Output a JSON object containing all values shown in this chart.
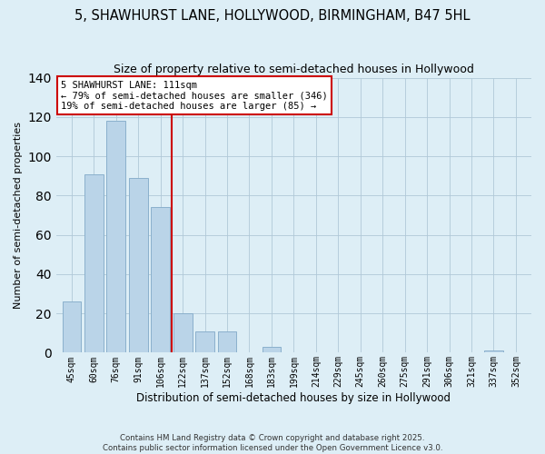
{
  "title": "5, SHAWHURST LANE, HOLLYWOOD, BIRMINGHAM, B47 5HL",
  "subtitle": "Size of property relative to semi-detached houses in Hollywood",
  "xlabel": "Distribution of semi-detached houses by size in Hollywood",
  "ylabel": "Number of semi-detached properties",
  "bar_labels": [
    "45sqm",
    "60sqm",
    "76sqm",
    "91sqm",
    "106sqm",
    "122sqm",
    "137sqm",
    "152sqm",
    "168sqm",
    "183sqm",
    "199sqm",
    "214sqm",
    "229sqm",
    "245sqm",
    "260sqm",
    "275sqm",
    "291sqm",
    "306sqm",
    "321sqm",
    "337sqm",
    "352sqm"
  ],
  "bar_values": [
    26,
    91,
    118,
    89,
    74,
    20,
    11,
    11,
    0,
    3,
    0,
    0,
    0,
    0,
    0,
    0,
    0,
    0,
    0,
    1,
    0
  ],
  "bar_color": "#bad4e8",
  "bar_edge_color": "#8ab0cc",
  "vline_x": 4.5,
  "vline_color": "#cc0000",
  "annotation_title": "5 SHAWHURST LANE: 111sqm",
  "annotation_line1": "← 79% of semi-detached houses are smaller (346)",
  "annotation_line2": "19% of semi-detached houses are larger (85) →",
  "annotation_box_color": "#ffffff",
  "annotation_box_edge": "#cc0000",
  "ylim": [
    0,
    140
  ],
  "yticks": [
    0,
    20,
    40,
    60,
    80,
    100,
    120,
    140
  ],
  "footer1": "Contains HM Land Registry data © Crown copyright and database right 2025.",
  "footer2": "Contains public sector information licensed under the Open Government Licence v3.0.",
  "bg_color": "#ddeef6",
  "plot_bg_color": "#ddeef6"
}
